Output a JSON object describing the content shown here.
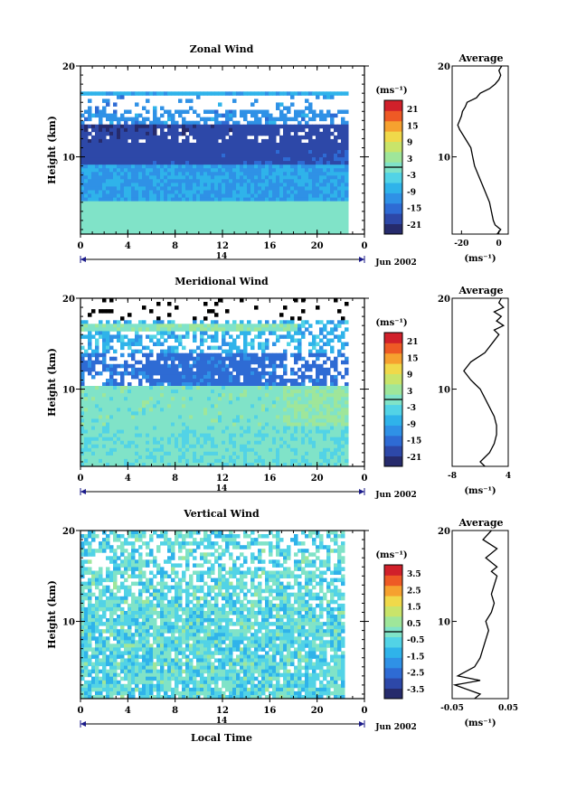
{
  "units_label": "(ms⁻¹)",
  "month_label": "Jun 2002",
  "x_bottom_label": "Local Time",
  "day_label": "14",
  "x_ticks": [
    "0",
    "4",
    "8",
    "12",
    "16",
    "20",
    "0"
  ],
  "y_ticks": [
    "20",
    "10"
  ],
  "y_label": "Height (km)",
  "average_title": "Average",
  "chart_data": [
    {
      "type": "heatmap",
      "title": "Zonal Wind",
      "ylabel": "Height (km)",
      "xlabel": "Local Time",
      "x_range": [
        0,
        24
      ],
      "y_range": [
        1.5,
        20
      ],
      "colorbar": {
        "ticks": [
          "21",
          "15",
          "9",
          "3",
          "-3",
          "-9",
          "-15",
          "-21"
        ],
        "range": [
          -24,
          24
        ]
      },
      "profile": {
        "title": "Average",
        "xlabel": "(ms⁻¹)",
        "x_ticks": [
          "-20",
          "0"
        ],
        "x_range": [
          -25,
          5
        ],
        "heights": [
          1.5,
          2,
          2.5,
          3,
          4,
          5,
          6,
          7,
          8,
          9,
          10,
          11,
          12,
          13,
          13.5,
          14,
          14.5,
          15,
          15.5,
          16,
          16.5,
          17,
          17.5,
          18,
          18.5,
          19,
          19.5,
          20
        ],
        "values": [
          -1,
          1,
          -2,
          -3,
          -4,
          -5,
          -7,
          -9,
          -11,
          -13,
          -14,
          -15,
          -18,
          -21,
          -22,
          -21,
          -20,
          -19.5,
          -18,
          -17,
          -12,
          -10,
          -5,
          -2,
          0,
          1,
          0,
          1.5
        ]
      }
    },
    {
      "type": "heatmap",
      "title": "Meridional Wind",
      "ylabel": "Height (km)",
      "xlabel": "Local Time",
      "x_range": [
        0,
        24
      ],
      "y_range": [
        1.5,
        20
      ],
      "colorbar": {
        "ticks": [
          "21",
          "15",
          "9",
          "3",
          "-3",
          "-9",
          "-15",
          "-21"
        ],
        "range": [
          -24,
          24
        ]
      },
      "profile": {
        "title": "Average",
        "xlabel": "(ms⁻¹)",
        "x_ticks": [
          "-8",
          "4"
        ],
        "x_range": [
          -8,
          4
        ],
        "heights": [
          1.5,
          2,
          2.5,
          3,
          4,
          5,
          6,
          7,
          8,
          9,
          10,
          10.5,
          11,
          12,
          13,
          14,
          15,
          16,
          16.5,
          17,
          17.5,
          18,
          18.5,
          19,
          19.5,
          20
        ],
        "values": [
          -1,
          -2,
          -1,
          0,
          1,
          1.5,
          1.5,
          1,
          0,
          -1,
          -2,
          -3,
          -4,
          -5.5,
          -4,
          -1,
          0.5,
          2,
          1,
          3,
          1.5,
          2.5,
          1,
          3,
          2,
          2.5
        ]
      }
    },
    {
      "type": "heatmap",
      "title": "Vertical Wind",
      "ylabel": "Height (km)",
      "xlabel": "Local Time",
      "x_range": [
        0,
        24
      ],
      "y_range": [
        1.5,
        20
      ],
      "colorbar": {
        "ticks": [
          "3.5",
          "2.5",
          "1.5",
          "0.5",
          "-0.5",
          "-1.5",
          "-2.5",
          "-3.5"
        ],
        "range": [
          -4,
          4
        ]
      },
      "profile": {
        "title": "Average",
        "xlabel": "(ms⁻¹)",
        "x_ticks": [
          "-0.05",
          "0.05"
        ],
        "x_range": [
          -0.05,
          0.05
        ],
        "heights": [
          1.5,
          2,
          3,
          3.5,
          4,
          5,
          6,
          7,
          8,
          9,
          10,
          11,
          12,
          13,
          14,
          15,
          15.5,
          16,
          17,
          18,
          19,
          20
        ],
        "values": [
          -0.01,
          0.0,
          -0.045,
          0.0,
          -0.04,
          -0.01,
          0.0,
          0.005,
          0.01,
          0.015,
          0.01,
          0.02,
          0.025,
          0.02,
          0.025,
          0.03,
          0.02,
          0.03,
          0.01,
          0.03,
          0.005,
          0.02
        ]
      }
    }
  ]
}
